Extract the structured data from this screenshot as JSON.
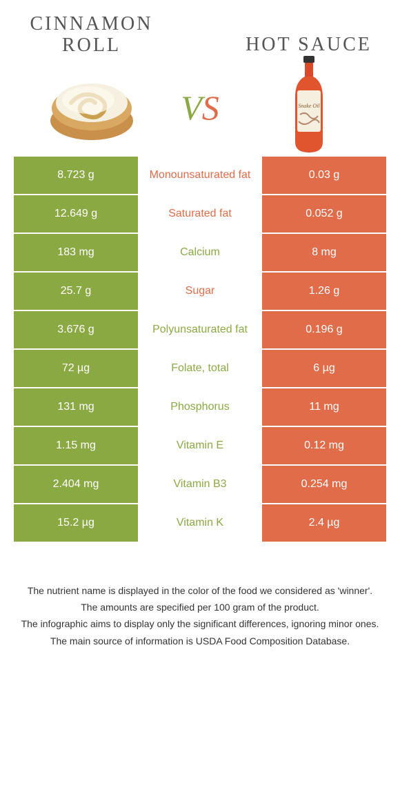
{
  "colors": {
    "green": "#8ba943",
    "orange": "#e06c49"
  },
  "left": {
    "title": "CINNAMON ROLL"
  },
  "right": {
    "title": "HOT SAUCE"
  },
  "vs": {
    "v": "V",
    "s": "S"
  },
  "rows": [
    {
      "left": "8.723 g",
      "label": "Monounsaturated fat",
      "right": "0.03 g",
      "winner": "orange"
    },
    {
      "left": "12.649 g",
      "label": "Saturated fat",
      "right": "0.052 g",
      "winner": "orange"
    },
    {
      "left": "183 mg",
      "label": "Calcium",
      "right": "8 mg",
      "winner": "green"
    },
    {
      "left": "25.7 g",
      "label": "Sugar",
      "right": "1.26 g",
      "winner": "orange"
    },
    {
      "left": "3.676 g",
      "label": "Polyunsaturated fat",
      "right": "0.196 g",
      "winner": "green"
    },
    {
      "left": "72 µg",
      "label": "Folate, total",
      "right": "6 µg",
      "winner": "green"
    },
    {
      "left": "131 mg",
      "label": "Phosphorus",
      "right": "11 mg",
      "winner": "green"
    },
    {
      "left": "1.15 mg",
      "label": "Vitamin E",
      "right": "0.12 mg",
      "winner": "green"
    },
    {
      "left": "2.404 mg",
      "label": "Vitamin B3",
      "right": "0.254 mg",
      "winner": "green"
    },
    {
      "left": "15.2 µg",
      "label": "Vitamin K",
      "right": "2.4 µg",
      "winner": "green"
    }
  ],
  "footer": {
    "l1": "The nutrient name is displayed in the color of the food we considered as 'winner'.",
    "l2": "The amounts are specified per 100 gram of the product.",
    "l3": "The infographic aims to display only the significant differences, ignoring minor ones.",
    "l4": "The main source of information is USDA Food Composition Database."
  }
}
